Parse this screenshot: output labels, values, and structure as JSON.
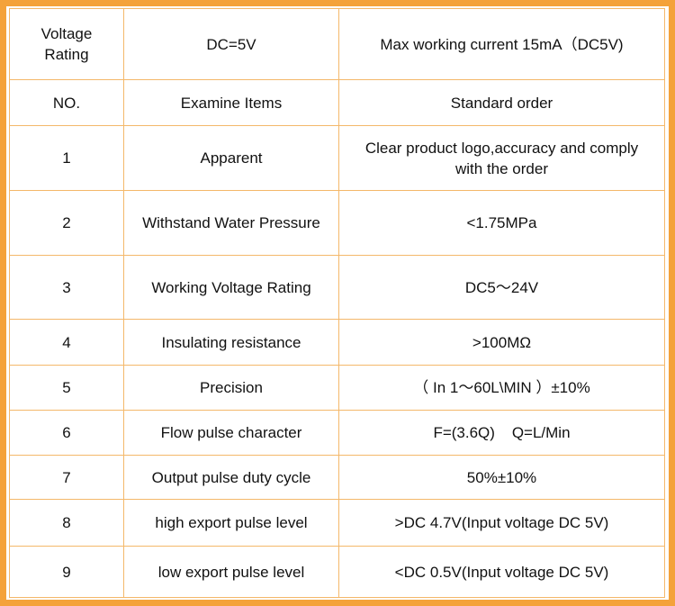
{
  "rows": [
    {
      "no": "Voltage Rating",
      "item": "DC=5V",
      "standard": "Max working current 15mA（DC5V)"
    },
    {
      "no": "NO.",
      "item": "Examine Items",
      "standard": "Standard order"
    },
    {
      "no": "1",
      "item": "Apparent",
      "standard": "Clear product logo,accuracy and comply with the order"
    },
    {
      "no": "2",
      "item": "Withstand Water Pressure",
      "standard": "<1.75MPa"
    },
    {
      "no": "3",
      "item": "Working Voltage Rating",
      "standard": "DC5～24V"
    },
    {
      "no": "4",
      "item": "Insulating resistance",
      "standard": ">100MΩ"
    },
    {
      "no": "5",
      "item": "Precision",
      "standard": "（ In 1～60L\\MIN ）±10%"
    },
    {
      "no": "6",
      "item": "Flow pulse character",
      "standard": "F=(3.6Q)    Q=L/Min"
    },
    {
      "no": "7",
      "item": "Output pulse duty cycle",
      "standard": "50%±10%"
    },
    {
      "no": "8",
      "item": "high export pulse level",
      "standard": ">DC 4.7V(Input voltage DC 5V)"
    },
    {
      "no": "9",
      "item": "low export pulse level",
      "standard": "<DC 0.5V(Input voltage DC 5V)"
    }
  ]
}
